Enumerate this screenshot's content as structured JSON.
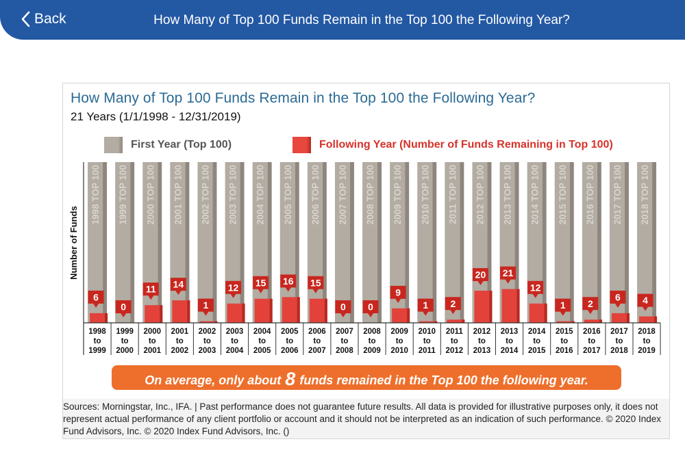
{
  "header": {
    "back_label": "Back",
    "title": "How Many of Top 100 Funds Remain in the Top 100 the Following Year?"
  },
  "colors": {
    "header_bg": "#2358a3",
    "gray_bar": "#b3aca3",
    "red_bar": "#e2423a",
    "callout": "#ee6f2b",
    "title_blue": "#2b6a94"
  },
  "chart_data": {
    "type": "bar",
    "title": "How Many of Top 100 Funds Remain in the Top 100 the Following Year?",
    "subtitle": "21 Years (1/1/1998 - 12/31/2019)",
    "ylabel": "Number of Funds",
    "xlabel": "",
    "ylim": [
      0,
      100
    ],
    "legend": {
      "first": "First Year (Top 100)",
      "following": "Following Year (Number of Funds Remaining in Top 100)"
    },
    "categories": [
      [
        "1998",
        "to",
        "1999"
      ],
      [
        "1999",
        "to",
        "2000"
      ],
      [
        "2000",
        "to",
        "2001"
      ],
      [
        "2001",
        "to",
        "2002"
      ],
      [
        "2002",
        "to",
        "2003"
      ],
      [
        "2003",
        "to",
        "2004"
      ],
      [
        "2004",
        "to",
        "2005"
      ],
      [
        "2005",
        "to",
        "2006"
      ],
      [
        "2006",
        "to",
        "2007"
      ],
      [
        "2007",
        "to",
        "2008"
      ],
      [
        "2008",
        "to",
        "2009"
      ],
      [
        "2009",
        "to",
        "2010"
      ],
      [
        "2010",
        "to",
        "2011"
      ],
      [
        "2011",
        "to",
        "2012"
      ],
      [
        "2012",
        "to",
        "2013"
      ],
      [
        "2013",
        "to",
        "2014"
      ],
      [
        "2014",
        "to",
        "2015"
      ],
      [
        "2015",
        "to",
        "2016"
      ],
      [
        "2016",
        "to",
        "2017"
      ],
      [
        "2017",
        "to",
        "2018"
      ],
      [
        "2018",
        "to",
        "2019"
      ]
    ],
    "series": [
      {
        "name": "First Year (Top 100)",
        "values": [
          100,
          100,
          100,
          100,
          100,
          100,
          100,
          100,
          100,
          100,
          100,
          100,
          100,
          100,
          100,
          100,
          100,
          100,
          100,
          100,
          100
        ],
        "labels": [
          "1998 TOP 100",
          "1999 TOP 100",
          "2000 TOP 100",
          "2001 TOP 100",
          "2002 TOP 100",
          "2003 TOP 100",
          "2004 TOP 100",
          "2005 TOP 100",
          "2006 TOP 100",
          "2007 TOP 100",
          "2008 TOP 100",
          "2009 TOP 100",
          "2010 TOP 100",
          "2011 TOP 100",
          "2012 TOP 100",
          "2013 TOP 100",
          "2014 TOP 100",
          "2015 TOP 100",
          "2016 TOP 100",
          "2017 TOP 100",
          "2018 TOP 100"
        ]
      },
      {
        "name": "Following Year (Number of Funds Remaining in Top 100)",
        "values": [
          6,
          0,
          11,
          14,
          1,
          12,
          15,
          16,
          15,
          0,
          0,
          9,
          1,
          2,
          20,
          21,
          12,
          1,
          2,
          6,
          4
        ]
      }
    ]
  },
  "callout": {
    "prefix": "On average, only about",
    "value": "8",
    "suffix": "funds remained in the Top 100 the following year."
  },
  "source": {
    "text": "Sources: Morningstar, Inc., IFA. | Past performance does not guarantee future results. All data is provided for illustrative purposes only, it does not represent actual performance of any client portfolio or account and it should not be interpreted as an indication of such performance. © 2020 Index Fund Advisors, Inc. © 2020 Index Fund Advisors, Inc. ()"
  }
}
